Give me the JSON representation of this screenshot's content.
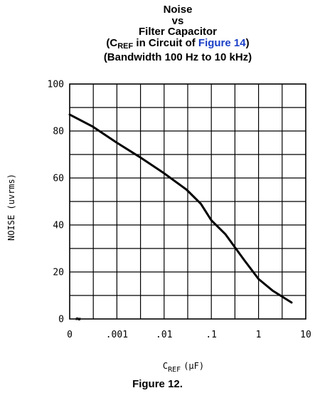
{
  "chart_data": {
    "type": "line",
    "title": {
      "line1": "Noise",
      "line2": "vs",
      "line3": "Filter Capacitor",
      "line4_open": "(C",
      "line4_sub": "REF",
      "line4_mid": " in Circuit of ",
      "line4_link": "Figure 14",
      "line4_close": ")",
      "line5": "(Bandwidth 100 Hz to 10 kHz)"
    },
    "ylabel": "NOISE (uvrms)",
    "xlabel_main": "C",
    "xlabel_sub": "REF",
    "xlabel_unit": "(μF)",
    "x_scale": "log",
    "x_ticks": [
      "0",
      ".001",
      ".01",
      ".1",
      "1",
      "10"
    ],
    "y_ticks": [
      "0",
      "20",
      "40",
      "60",
      "80",
      "100"
    ],
    "ylim": [
      0,
      100
    ],
    "grid": true,
    "break_marker": "≈",
    "series": [
      {
        "x": [
          0.0001,
          0.0003,
          0.001,
          0.003,
          0.01,
          0.03,
          0.06,
          0.1,
          0.2,
          0.5,
          1,
          2,
          5
        ],
        "y": [
          87,
          82,
          75,
          69,
          62,
          55,
          49,
          42,
          36,
          25,
          17,
          12,
          7
        ]
      }
    ],
    "caption": "Figure 12."
  }
}
